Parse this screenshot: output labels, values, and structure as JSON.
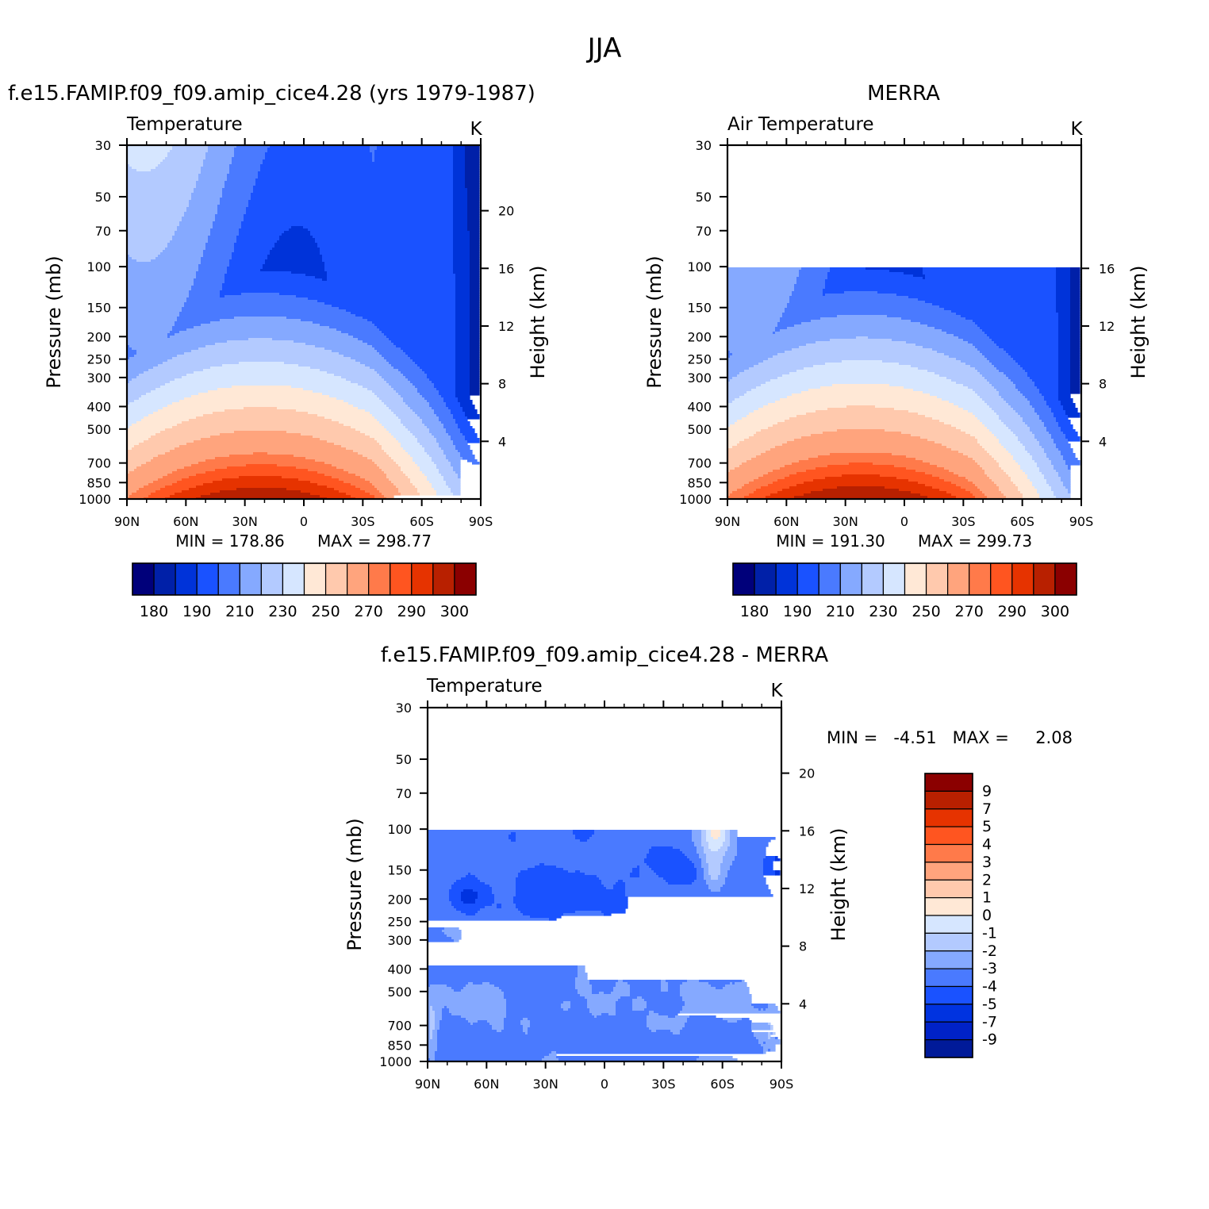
{
  "figure": {
    "season_title": "JJA",
    "colors": {
      "abs_palette": [
        "#00007a",
        "#0020a8",
        "#0033d9",
        "#1a52ff",
        "#4a7aff",
        "#85a9ff",
        "#b3caff",
        "#d6e6ff",
        "#ffe8d6",
        "#ffc9ad",
        "#ffa47d",
        "#ff7a4a",
        "#ff5520",
        "#e63300",
        "#b82000",
        "#8b0000"
      ],
      "diff_palette": [
        "#00007a",
        "#001a99",
        "#0022c7",
        "#0033e0",
        "#1a52ff",
        "#4a7aff",
        "#85a9ff",
        "#b3caff",
        "#d6e6ff",
        "#ffe8d6",
        "#ffc9ad",
        "#ffa47d",
        "#ff7a4a",
        "#ff5520",
        "#e63300",
        "#b82000",
        "#8b0000"
      ]
    }
  },
  "chart_data": [
    {
      "type": "heatmap",
      "panel_title": "f.e15.FAMIP.f09_f09.amip_cice4.28 (yrs 1979-1987)",
      "field_label": "Temperature",
      "units": "K",
      "ylabel": "Pressure (mb)",
      "ylabel_right": "Height (km)",
      "x_ticks": [
        "90N",
        "60N",
        "30N",
        "0",
        "30S",
        "60S",
        "90S"
      ],
      "x": [
        90,
        -90
      ],
      "y_ticks": [
        30,
        50,
        70,
        100,
        150,
        200,
        250,
        300,
        400,
        500,
        700,
        850,
        1000
      ],
      "ylim": [
        30,
        1000
      ],
      "yscale": "log",
      "height_ticks": [
        20,
        16,
        12,
        8,
        4
      ],
      "min_label": "MIN = 178.86",
      "max_label": "MAX = 298.77",
      "min": 178.86,
      "max": 298.77,
      "data_top_pressure": 30,
      "colorbar_labels": [
        "180",
        "190",
        "210",
        "230",
        "250",
        "270",
        "290",
        "300"
      ],
      "grid": false
    },
    {
      "type": "heatmap",
      "panel_title": "MERRA",
      "field_label": "Air Temperature",
      "units": "K",
      "ylabel": "Pressure (mb)",
      "ylabel_right": "Height (km)",
      "x_ticks": [
        "90N",
        "60N",
        "30N",
        "0",
        "30S",
        "60S",
        "90S"
      ],
      "x": [
        90,
        -90
      ],
      "y_ticks": [
        30,
        50,
        70,
        100,
        150,
        200,
        250,
        300,
        400,
        500,
        700,
        850,
        1000
      ],
      "ylim": [
        30,
        1000
      ],
      "yscale": "log",
      "height_ticks": [
        16,
        12,
        8,
        4
      ],
      "min_label": "MIN = 191.30",
      "max_label": "MAX = 299.73",
      "min": 191.3,
      "max": 299.73,
      "data_top_pressure": 100,
      "colorbar_labels": [
        "180",
        "190",
        "210",
        "230",
        "250",
        "270",
        "290",
        "300"
      ],
      "grid": false
    },
    {
      "type": "heatmap",
      "panel_title": "f.e15.FAMIP.f09_f09.amip_cice4.28 - MERRA",
      "field_label": "Temperature",
      "units": "K",
      "ylabel": "Pressure (mb)",
      "ylabel_right": "Height (km)",
      "x_ticks": [
        "90N",
        "60N",
        "30N",
        "0",
        "30S",
        "60S",
        "90S"
      ],
      "x": [
        90,
        -90
      ],
      "y_ticks": [
        30,
        50,
        70,
        100,
        150,
        200,
        250,
        300,
        400,
        500,
        700,
        850,
        1000
      ],
      "ylim": [
        30,
        1000
      ],
      "yscale": "log",
      "height_ticks": [
        20,
        16,
        12,
        8,
        4
      ],
      "minmax_label": "MIN =   -4.51   MAX =     2.08",
      "min": -4.51,
      "max": 2.08,
      "data_top_pressure": 100,
      "colorbar_labels": [
        "9",
        "7",
        "5",
        "4",
        "3",
        "2",
        "1",
        "0",
        "-1",
        "-2",
        "-3",
        "-4",
        "-5",
        "-7",
        "-9"
      ],
      "grid": false
    }
  ]
}
